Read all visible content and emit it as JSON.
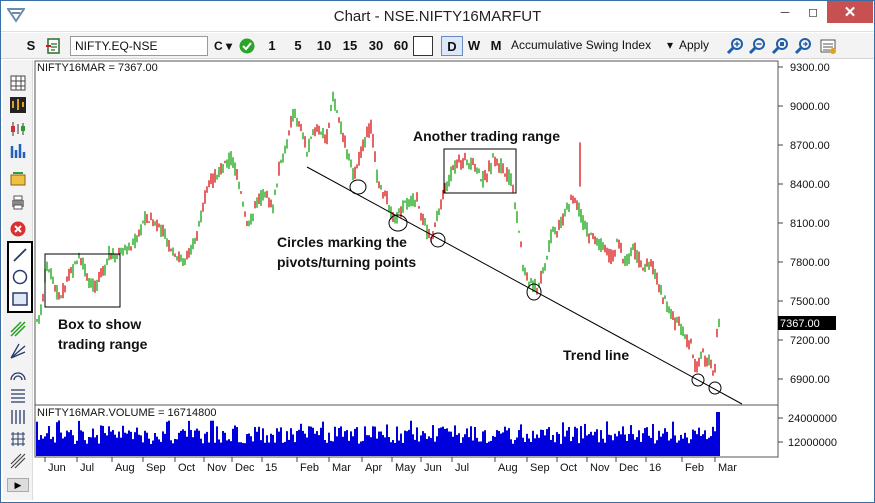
{
  "window": {
    "title": "Chart - NSE.NIFTY16MARFUT"
  },
  "toolbar": {
    "s_label": "S",
    "symbol_value": "NIFTY.EQ-NSE",
    "c_label": "C ▾",
    "intervals": [
      "1",
      "5",
      "10",
      "15",
      "30",
      "60"
    ],
    "periods": [
      "D",
      "W",
      "M"
    ],
    "selected_period": "D",
    "indicator": "Accumulative Swing Index",
    "apply_label": "Apply"
  },
  "price_panel": {
    "label": "NIFTY16MAR = 7367.00",
    "last_price_tag": "7367.00",
    "y_ticks": [
      "9300.00",
      "9000.00",
      "8700.00",
      "8400.00",
      "8100.00",
      "7800.00",
      "7500.00",
      "7200.00",
      "6900.00"
    ]
  },
  "volume_panel": {
    "label": "NIFTY16MAR.VOLUME = 16714800",
    "y_ticks": [
      "24000000",
      "12000000"
    ]
  },
  "x_axis": {
    "labels": [
      "Jun",
      "Jul",
      "Aug",
      "Sep",
      "Oct",
      "Nov",
      "Dec",
      "15",
      "Feb",
      "Mar",
      "Apr",
      "May",
      "Jun",
      "Jul",
      "Aug",
      "Sep",
      "Oct",
      "Nov",
      "Dec",
      "16",
      "Feb",
      "Mar"
    ]
  },
  "annotations": {
    "box_label_1": "Box to show",
    "box_label_2": "trading range",
    "circles_label_1": "Circles marking the",
    "circles_label_2": "pivots/turning points",
    "another_range": "Another trading range",
    "trend_line": "Trend line"
  },
  "colors": {
    "up_bar": "#22aa22",
    "down_bar": "#dd2222",
    "volume": "#0000dd",
    "close_button": "#c75050",
    "price_tag_bg": "#000000"
  },
  "icons": [
    "app-icon",
    "minimize-icon",
    "maximize-icon",
    "close-icon",
    "document-icon",
    "checkmark-icon",
    "zoom-in-icon",
    "zoom-out-icon",
    "zoom-fit-icon",
    "zoom-reset-icon",
    "settings-icon",
    "line-tool-icon",
    "circle-tool-icon",
    "rectangle-tool-icon"
  ]
}
